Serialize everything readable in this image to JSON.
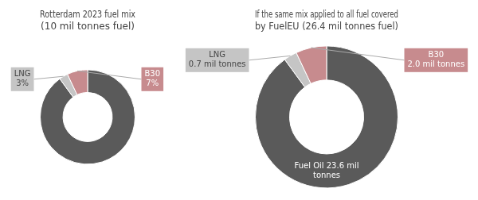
{
  "chart_data": [
    {
      "type": "doughnut",
      "title": "Rotterdam 2023 fuel mix\n(10 mil tonnes fuel)",
      "values": [
        90,
        3,
        7
      ],
      "value_labels": [
        null,
        "LNG\n3%",
        "B30\n7%"
      ],
      "colors": [
        "#5a5a5a",
        "#c5c5c5",
        "#c78b8e"
      ],
      "data_labels": true
    },
    {
      "type": "doughnut",
      "title": "If the same mix applied to all fuel covered\nby FuelEU (26.4 mil tonnes fuel)",
      "values": [
        90,
        3,
        7
      ],
      "value_labels": [
        "Fuel Oil 23.6 mil\ntonnes",
        "LNG\n0.7 mil tonnes",
        "B30\n2.0 mil tonnes"
      ],
      "colors": [
        "#5a5a5a",
        "#c5c5c5",
        "#c78b8e"
      ],
      "data_labels": true
    }
  ]
}
